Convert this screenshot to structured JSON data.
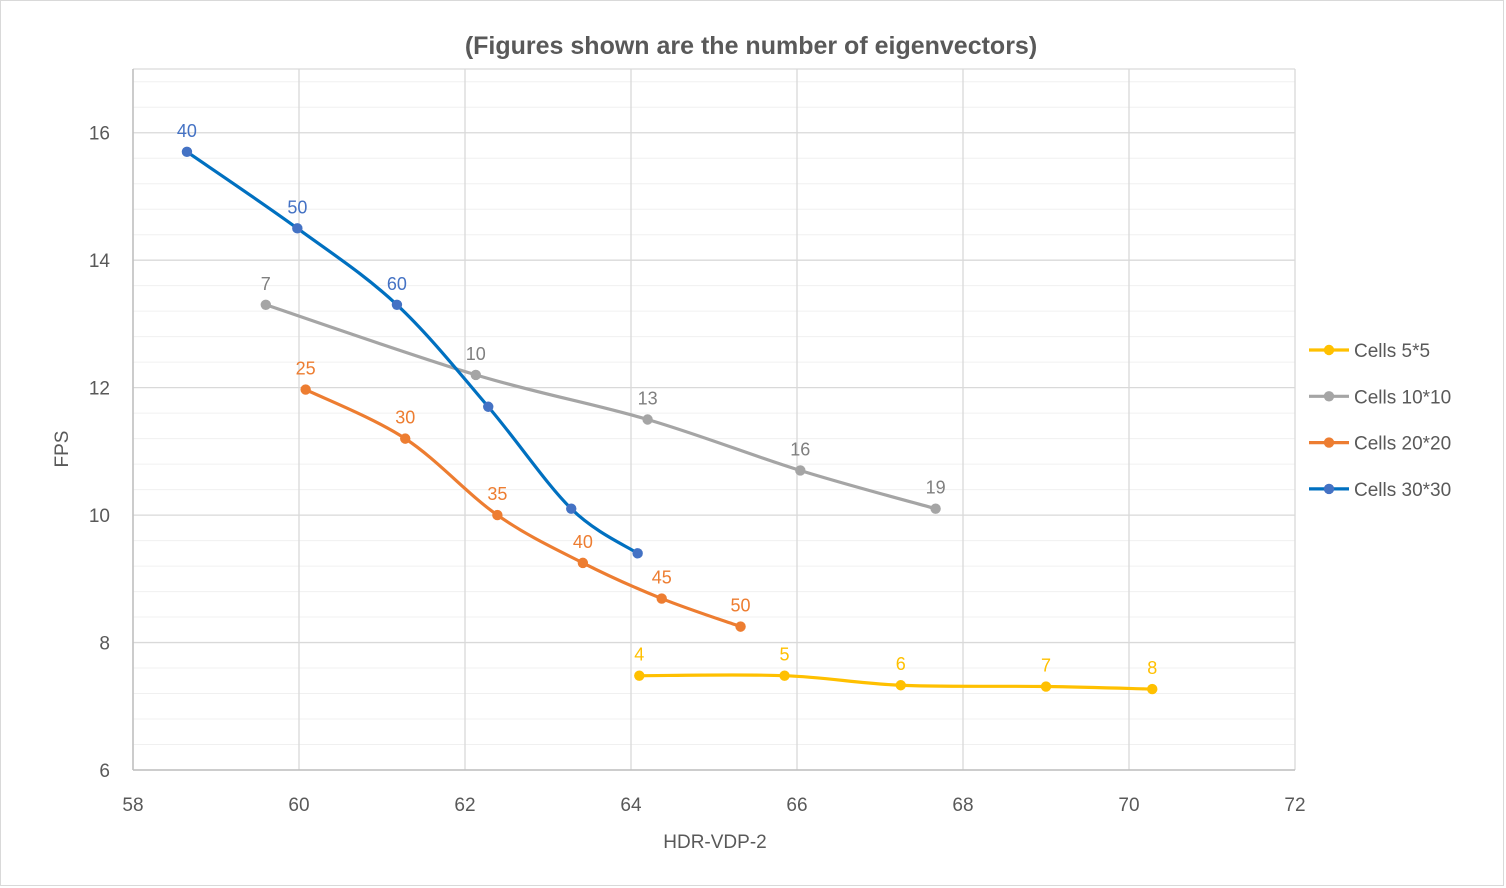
{
  "chart_data": {
    "type": "scatter",
    "subtype": "smooth-lines-with-markers",
    "title": "(Figures shown are the number of eigenvectors)",
    "xlabel": "HDR-VDP-2",
    "ylabel": "FPS",
    "xlim": [
      58,
      72
    ],
    "ylim": [
      6,
      17
    ],
    "x_ticks": [
      58,
      60,
      62,
      64,
      66,
      68,
      70,
      72
    ],
    "y_ticks": [
      6,
      8,
      10,
      12,
      14,
      16
    ],
    "y_minor_step": 0.4,
    "grid": true,
    "legend_position": "right",
    "series": [
      {
        "name": "Cells 5*5",
        "color": "#FFC000",
        "points": [
          {
            "x": 64.1,
            "y": 7.48,
            "label": "4"
          },
          {
            "x": 65.85,
            "y": 7.48,
            "label": "5"
          },
          {
            "x": 67.25,
            "y": 7.33,
            "label": "6"
          },
          {
            "x": 69.0,
            "y": 7.31,
            "label": "7"
          },
          {
            "x": 70.28,
            "y": 7.27,
            "label": "8"
          }
        ]
      },
      {
        "name": "Cells 10*10",
        "color": "#A5A5A5",
        "points": [
          {
            "x": 59.6,
            "y": 13.3,
            "label": "7"
          },
          {
            "x": 62.13,
            "y": 12.2,
            "label": "10"
          },
          {
            "x": 64.2,
            "y": 11.5,
            "label": "13"
          },
          {
            "x": 66.04,
            "y": 10.7,
            "label": "16"
          },
          {
            "x": 67.67,
            "y": 10.1,
            "label": "19"
          }
        ]
      },
      {
        "name": "Cells 20*20",
        "color": "#ED7D31",
        "points": [
          {
            "x": 60.08,
            "y": 11.97,
            "label": "25"
          },
          {
            "x": 61.28,
            "y": 11.2,
            "label": "30"
          },
          {
            "x": 62.39,
            "y": 10.0,
            "label": "35"
          },
          {
            "x": 63.42,
            "y": 9.25,
            "label": "40"
          },
          {
            "x": 64.37,
            "y": 8.69,
            "label": "45"
          },
          {
            "x": 65.32,
            "y": 8.25,
            "label": "50"
          }
        ]
      },
      {
        "name": "Cells 30*30",
        "color": "#4472C4",
        "line_color": "#0070C0",
        "points": [
          {
            "x": 58.65,
            "y": 15.7,
            "label": "40"
          },
          {
            "x": 59.98,
            "y": 14.5,
            "label": "50"
          },
          {
            "x": 61.18,
            "y": 13.3,
            "label": "60"
          },
          {
            "x": 62.28,
            "y": 11.7,
            "label": null
          },
          {
            "x": 63.28,
            "y": 10.1,
            "label": null
          },
          {
            "x": 64.08,
            "y": 9.4,
            "label": null
          }
        ]
      }
    ]
  }
}
